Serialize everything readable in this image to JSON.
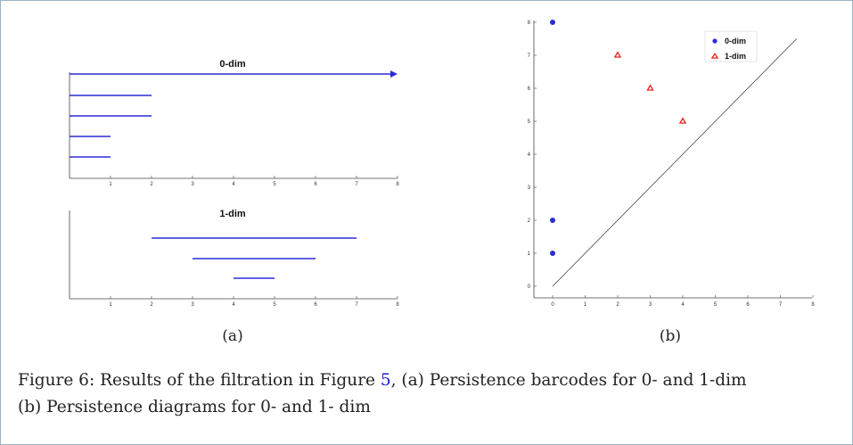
{
  "figure": {
    "caption_prefix": "Figure 6: Results of the filtration in Figure ",
    "caption_ref": "5",
    "caption_rest": ", (a) Persistence barcodes for 0- and 1-dim",
    "caption_line2": "(b) Persistence diagrams for 0- and 1- dim",
    "sublabel_a": "(a)",
    "sublabel_b": "(b)"
  },
  "colors": {
    "zero_dim": "#2b2bd8",
    "one_dim": "#e8201a",
    "axis": "#444444"
  },
  "chart_data": [
    {
      "type": "barcode",
      "title": "0-dim",
      "xlim": [
        0,
        8
      ],
      "xticks": [
        "1",
        "2",
        "3",
        "4",
        "5",
        "6",
        "7",
        "8"
      ],
      "bars": [
        {
          "start": 0,
          "end": 8,
          "infinite": true
        },
        {
          "start": 0,
          "end": 2
        },
        {
          "start": 0,
          "end": 2
        },
        {
          "start": 0,
          "end": 1
        },
        {
          "start": 0,
          "end": 1
        }
      ]
    },
    {
      "type": "barcode",
      "title": "1-dim",
      "xlim": [
        0,
        8
      ],
      "xticks": [
        "1",
        "2",
        "3",
        "4",
        "5",
        "6",
        "7",
        "8"
      ],
      "bars": [
        {
          "start": 2,
          "end": 7
        },
        {
          "start": 3,
          "end": 6
        },
        {
          "start": 4,
          "end": 5
        }
      ]
    },
    {
      "type": "scatter",
      "xlim": [
        0,
        8
      ],
      "ylim": [
        0,
        8
      ],
      "xticks": [
        "0",
        "1",
        "2",
        "3",
        "4",
        "5",
        "6",
        "7",
        "8"
      ],
      "yticks": [
        "0",
        "1",
        "2",
        "3",
        "4",
        "5",
        "6",
        "7",
        "8"
      ],
      "legend_position": "top-right",
      "diagonal": true,
      "series": [
        {
          "name": "0-dim",
          "marker": "circle",
          "points": [
            [
              0,
              8
            ],
            [
              0,
              2
            ],
            [
              0,
              1
            ]
          ]
        },
        {
          "name": "1-dim",
          "marker": "triangle",
          "points": [
            [
              2,
              7
            ],
            [
              3,
              6
            ],
            [
              4,
              5
            ]
          ]
        }
      ]
    }
  ]
}
